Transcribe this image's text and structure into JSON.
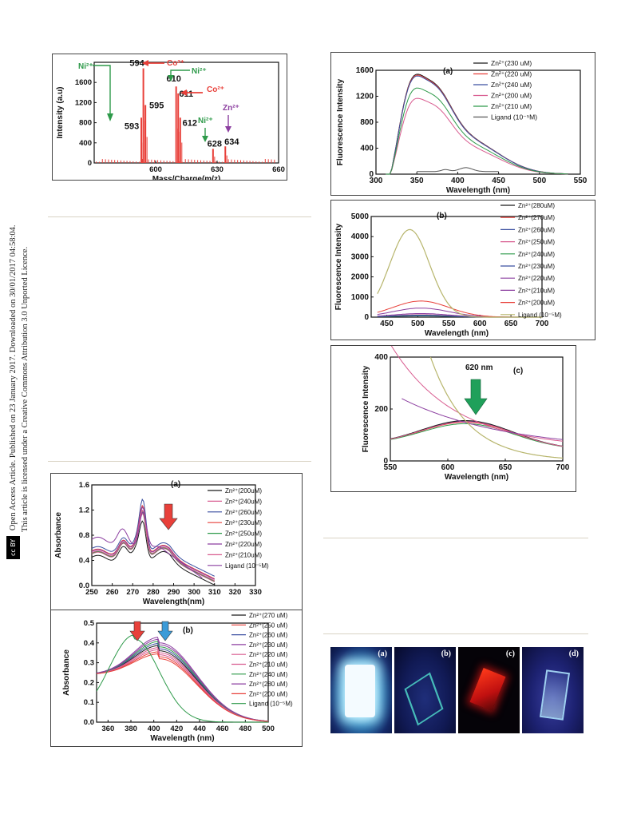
{
  "sidebar": {
    "line1": "Open Access Article. Published on 23 January 2017. Downloaded on 30/01/2017 04:58:04.",
    "line2": "This article is licensed under a Creative Commons Attribution 3.0 Unported Licence.",
    "cc_badge": "cc BY"
  },
  "colors": {
    "rule": "#d9d3c4",
    "black": "#1a1a1a",
    "red": "#e8403a",
    "blue": "#3a4fa0",
    "pink": "#d85b8f",
    "green": "#2e9a4a",
    "gray": "#555555",
    "purple": "#8c3fa0",
    "olive": "#b7b56c"
  },
  "mass_spec": {
    "chart_data": {
      "type": "bar",
      "xlabel": "Mass/Charge(m/z)",
      "ylabel": "Intensity (a.u)",
      "xlim": [
        570,
        660
      ],
      "ylim": [
        0,
        2000
      ],
      "xticks": [
        "600",
        "630",
        "660"
      ],
      "yticks": [
        "0",
        "400",
        "800",
        "1200",
        "1600"
      ],
      "peaks": [
        {
          "x": 593,
          "y": 900,
          "label": "593"
        },
        {
          "x": 594,
          "y": 1880,
          "label": "594"
        },
        {
          "x": 595,
          "y": 1150,
          "label": "595"
        },
        {
          "x": 610,
          "y": 1520,
          "label": "610"
        },
        {
          "x": 611,
          "y": 1380,
          "label": "611"
        },
        {
          "x": 612,
          "y": 900,
          "label": "612"
        },
        {
          "x": 628,
          "y": 280,
          "label": "628"
        },
        {
          "x": 634,
          "y": 330,
          "label": "634"
        }
      ],
      "annotations": [
        "Ni²⁺",
        "Co²⁺",
        "Ni²⁺",
        "Co²⁺",
        "Ni²⁺",
        "Zn²⁺"
      ]
    }
  },
  "abs_a": {
    "chart_data": {
      "type": "line",
      "panel": "(a)",
      "xlabel": "Wavelength(nm)",
      "ylabel": "Absorbance",
      "xlim": [
        250,
        330
      ],
      "ylim": [
        0.0,
        1.6
      ],
      "xticks": [
        "250",
        "260",
        "270",
        "280",
        "290",
        "300",
        "310",
        "320",
        "330"
      ],
      "yticks": [
        "0.0",
        "0.4",
        "0.8",
        "1.2",
        "1.6"
      ],
      "legend": [
        "Zn²⁺(200uM)",
        "Zn²⁺(240uM)",
        "Zn²⁺(260uM)",
        "Zn²⁺(230uM)",
        "Zn²⁺(250uM)",
        "Zn²⁺(220uM)",
        "Zn²⁺(210uM)",
        "Ligand (10⁻⁵M)"
      ]
    }
  },
  "abs_b": {
    "chart_data": {
      "type": "line",
      "panel": "(b)",
      "xlabel": "Wavelength (nm)",
      "ylabel": "Absorbance",
      "xlim": [
        350,
        500
      ],
      "ylim": [
        0.0,
        0.5
      ],
      "xticks": [
        "360",
        "380",
        "400",
        "420",
        "440",
        "460",
        "480",
        "500"
      ],
      "yticks": [
        "0.0",
        "0.1",
        "0.2",
        "0.3",
        "0.4",
        "0.5"
      ],
      "legend": [
        "Zn²⁺(270 uM)",
        "Zn²⁺(250 uM)",
        "Zn²⁺(260 uM)",
        "Zn²⁺(230 uM)",
        "Zn²⁺(220 uM)",
        "Zn²⁺(210 uM)",
        "Zn²⁺(240 uM)",
        "Zn²⁺(280 uM)",
        "Zn²⁺(200 uM)",
        "Ligand (10⁻⁵M)"
      ]
    }
  },
  "fl_a": {
    "chart_data": {
      "type": "line",
      "panel": "(a)",
      "xlabel": "Wavelength (nm)",
      "ylabel": "Fluorescence Intensity",
      "xlim": [
        300,
        550
      ],
      "ylim": [
        0,
        1600
      ],
      "xticks": [
        "300",
        "350",
        "400",
        "450",
        "500",
        "550"
      ],
      "yticks": [
        "0",
        "400",
        "800",
        "1200",
        "1600"
      ],
      "legend": [
        "Zn²⁺(230 uM)",
        "Zn²⁺(220 uM)",
        "Zn²⁺(240 uM)",
        "Zn²⁺(200 uM)",
        "Zn²⁺(210 uM)",
        "Ligand (10⁻⁵M)"
      ]
    }
  },
  "fl_b": {
    "chart_data": {
      "type": "line",
      "panel": "(b)",
      "xlabel": "Wavelength (nm)",
      "ylabel": "Fluorescence Intensity",
      "xlim": [
        425,
        700
      ],
      "ylim": [
        0,
        5000
      ],
      "xticks": [
        "450",
        "500",
        "550",
        "600",
        "650",
        "700"
      ],
      "yticks": [
        "0",
        "1000",
        "2000",
        "3000",
        "4000",
        "5000"
      ],
      "legend": [
        "Zn²⁺(280uM)",
        "Zn²⁺(270uM)",
        "Zn²⁺(260uM)",
        "Zn²⁺(250uM)",
        "Zn²⁺(240uM)",
        "Zn²⁺(230uM)",
        "Zn²⁺(220uM)",
        "Zn²⁺(210uM)",
        "Zn²⁺(200uM)",
        "Ligand (10⁻⁵M)"
      ]
    }
  },
  "fl_c": {
    "chart_data": {
      "type": "line",
      "panel": "(c)",
      "annotation": "620 nm",
      "xlabel": "Wavelength (nm)",
      "ylabel": "Fluorescence Intensity",
      "xlim": [
        550,
        700
      ],
      "ylim": [
        0,
        400
      ],
      "xticks": [
        "550",
        "600",
        "650",
        "700"
      ],
      "yticks": [
        "0",
        "200",
        "400"
      ]
    }
  },
  "photos": {
    "labels": [
      "(a)",
      "(b)",
      "(c)",
      "(d)"
    ]
  }
}
